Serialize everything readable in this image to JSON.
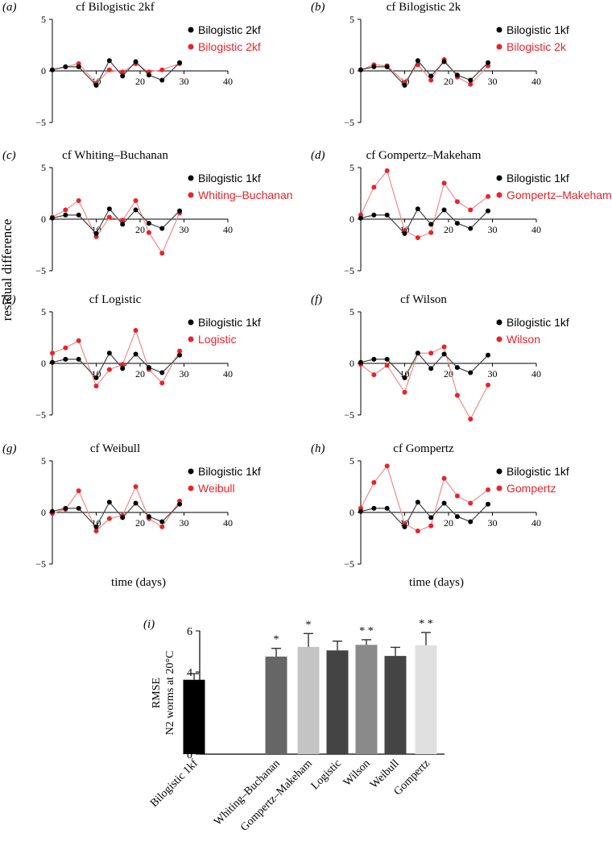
{
  "figure": {
    "y_axis_label": "residual difference",
    "x_axis_label": "time (days)"
  },
  "chart_data": [
    {
      "panel": "(a)",
      "title": "cf Bilogistic 2kf",
      "type": "line",
      "xlim": [
        0,
        40
      ],
      "ylim": [
        -5,
        5
      ],
      "xticks": [
        "10",
        "20",
        "30",
        "40"
      ],
      "yticks": [
        "5",
        "0",
        "−5"
      ],
      "series": [
        {
          "name": "Bilogistic 2kf",
          "color": "#000000",
          "x": [
            0,
            3,
            6,
            10,
            13,
            16,
            19,
            22,
            25,
            29
          ],
          "y": [
            0.1,
            0.4,
            0.4,
            -1.4,
            1.0,
            -0.5,
            0.9,
            -0.4,
            -0.9,
            0.8
          ]
        },
        {
          "name": "Bilogistic 2kf",
          "color": "#e8232a",
          "x": [
            0,
            3,
            6,
            10,
            13,
            16,
            19,
            22,
            25,
            29
          ],
          "y": [
            0.1,
            0.4,
            0.7,
            -1.2,
            0.1,
            -0.1,
            0.7,
            -0.1,
            0.1,
            0.7
          ]
        }
      ]
    },
    {
      "panel": "(b)",
      "title": "cf Bilogistic 2k",
      "type": "line",
      "xlim": [
        0,
        40
      ],
      "ylim": [
        -5,
        5
      ],
      "xticks": [
        "10",
        "20",
        "30",
        "40"
      ],
      "yticks": [
        "5",
        "0",
        "−5"
      ],
      "series": [
        {
          "name": "Bilogistic 1kf",
          "color": "#000000",
          "x": [
            0,
            3,
            6,
            10,
            13,
            16,
            19,
            22,
            25,
            29
          ],
          "y": [
            0.1,
            0.4,
            0.4,
            -1.4,
            1.0,
            -0.5,
            0.9,
            -0.4,
            -0.9,
            0.8
          ]
        },
        {
          "name": "Bilogistic 2k",
          "color": "#e8232a",
          "x": [
            0,
            3,
            6,
            10,
            13,
            16,
            19,
            22,
            25,
            29
          ],
          "y": [
            0.1,
            0.6,
            0.5,
            -1.1,
            0.6,
            -0.9,
            1.1,
            -0.6,
            -1.3,
            0.5
          ]
        }
      ]
    },
    {
      "panel": "(c)",
      "title": "cf Whiting–Buchanan",
      "type": "line",
      "xlim": [
        0,
        40
      ],
      "ylim": [
        -5,
        5
      ],
      "xticks": [
        "10",
        "20",
        "30",
        "40"
      ],
      "yticks": [
        "5",
        "0",
        "−5"
      ],
      "series": [
        {
          "name": "Bilogistic 1kf",
          "color": "#000000",
          "x": [
            0,
            3,
            6,
            10,
            13,
            16,
            19,
            22,
            25,
            29
          ],
          "y": [
            0.1,
            0.4,
            0.4,
            -1.4,
            1.0,
            -0.5,
            0.9,
            -0.4,
            -0.9,
            0.8
          ]
        },
        {
          "name": "Whiting–Buchanan",
          "color": "#e8232a",
          "x": [
            0,
            3,
            6,
            10,
            13,
            16,
            19,
            22,
            25,
            29
          ],
          "y": [
            0.2,
            0.9,
            1.8,
            -1.7,
            0.2,
            -0.1,
            1.8,
            -1.3,
            -3.3,
            0.6
          ]
        }
      ]
    },
    {
      "panel": "(d)",
      "title": "cf Gompertz–Makeham",
      "type": "line",
      "xlim": [
        0,
        40
      ],
      "ylim": [
        -5,
        5
      ],
      "xticks": [
        "10",
        "20",
        "30",
        "40"
      ],
      "yticks": [
        "5",
        "0",
        "−5"
      ],
      "series": [
        {
          "name": "Bilogistic 1kf",
          "color": "#000000",
          "x": [
            0,
            3,
            6,
            10,
            13,
            16,
            19,
            22,
            25,
            29
          ],
          "y": [
            0.1,
            0.4,
            0.4,
            -1.4,
            1.0,
            -0.5,
            0.9,
            -0.4,
            -0.9,
            0.8
          ]
        },
        {
          "name": "Gompertz–Makeham",
          "color": "#e8232a",
          "x": [
            0,
            3,
            6,
            10,
            13,
            16,
            19,
            22,
            25,
            29
          ],
          "y": [
            0.4,
            3.1,
            4.7,
            -1.1,
            -1.8,
            -1.3,
            3.5,
            1.7,
            0.9,
            2.2
          ]
        }
      ]
    },
    {
      "panel": "(e)",
      "title": "cf Logistic",
      "type": "line",
      "xlim": [
        0,
        40
      ],
      "ylim": [
        -5,
        5
      ],
      "xticks": [
        "10",
        "20",
        "30",
        "40"
      ],
      "yticks": [
        "5",
        "0",
        "−5"
      ],
      "series": [
        {
          "name": "Bilogistic 1kf",
          "color": "#000000",
          "x": [
            0,
            3,
            6,
            10,
            13,
            16,
            19,
            22,
            25,
            29
          ],
          "y": [
            0.1,
            0.4,
            0.4,
            -1.4,
            1.0,
            -0.5,
            0.9,
            -0.4,
            -0.9,
            0.8
          ]
        },
        {
          "name": "Logistic",
          "color": "#e8232a",
          "x": [
            0,
            3,
            6,
            10,
            13,
            16,
            19,
            22,
            25,
            29
          ],
          "y": [
            1.0,
            1.5,
            2.2,
            -2.2,
            -0.6,
            -0.1,
            3.2,
            -0.6,
            -1.9,
            1.2
          ]
        }
      ]
    },
    {
      "panel": "(f)",
      "title": "cf Wilson",
      "type": "line",
      "xlim": [
        0,
        40
      ],
      "ylim": [
        -5,
        5
      ],
      "xticks": [
        "10",
        "20",
        "30",
        "40"
      ],
      "yticks": [
        "5",
        "0",
        "−5"
      ],
      "series": [
        {
          "name": "Bilogistic 1kf",
          "color": "#000000",
          "x": [
            0,
            3,
            6,
            10,
            13,
            16,
            19,
            22,
            25,
            29
          ],
          "y": [
            0.1,
            0.4,
            0.4,
            -1.4,
            1.0,
            -0.5,
            0.9,
            -0.4,
            -0.9,
            0.8
          ]
        },
        {
          "name": "Wilson",
          "color": "#e8232a",
          "x": [
            0,
            3,
            6,
            10,
            13,
            16,
            19,
            22,
            25,
            29
          ],
          "y": [
            -0.1,
            -1.1,
            -0.2,
            -2.8,
            1.0,
            1.0,
            1.6,
            -3.1,
            -5.4,
            -2.1
          ]
        }
      ]
    },
    {
      "panel": "(g)",
      "title": "cf Weibull",
      "type": "line",
      "xlim": [
        0,
        40
      ],
      "ylim": [
        -5,
        5
      ],
      "xticks": [
        "10",
        "20",
        "30",
        "40"
      ],
      "yticks": [
        "5",
        "0",
        "−5"
      ],
      "series": [
        {
          "name": "Bilogistic 1kf",
          "color": "#000000",
          "x": [
            0,
            3,
            6,
            10,
            13,
            16,
            19,
            22,
            25,
            29
          ],
          "y": [
            0.1,
            0.4,
            0.4,
            -1.4,
            1.0,
            -0.5,
            0.9,
            -0.4,
            -0.9,
            0.8
          ]
        },
        {
          "name": "Weibull",
          "color": "#e8232a",
          "x": [
            0,
            3,
            6,
            10,
            13,
            16,
            19,
            22,
            25,
            29
          ],
          "y": [
            -0.1,
            0.3,
            2.1,
            -1.8,
            -0.6,
            -0.3,
            2.5,
            -0.6,
            -1.4,
            1.1
          ]
        }
      ]
    },
    {
      "panel": "(h)",
      "title": "cf Gompertz",
      "type": "line",
      "xlim": [
        0,
        40
      ],
      "ylim": [
        -5,
        5
      ],
      "xticks": [
        "10",
        "20",
        "30",
        "40"
      ],
      "yticks": [
        "5",
        "0",
        "−5"
      ],
      "series": [
        {
          "name": "Bilogistic 1kf",
          "color": "#000000",
          "x": [
            0,
            3,
            6,
            10,
            13,
            16,
            19,
            22,
            25,
            29
          ],
          "y": [
            0.1,
            0.4,
            0.4,
            -1.4,
            1.0,
            -0.5,
            0.9,
            -0.4,
            -0.9,
            0.8
          ]
        },
        {
          "name": "Gompertz",
          "color": "#e8232a",
          "x": [
            0,
            3,
            6,
            10,
            13,
            16,
            19,
            22,
            25,
            29
          ],
          "y": [
            0.4,
            2.9,
            4.5,
            -1.1,
            -1.8,
            -1.3,
            3.3,
            1.6,
            0.9,
            2.2
          ]
        }
      ]
    },
    {
      "panel": "(i)",
      "type": "bar",
      "ylabel": "RMSE\nN2 worms at 20°C",
      "ylim": [
        0,
        6
      ],
      "yticks": [
        "0",
        "2",
        "4",
        "6"
      ],
      "categories": [
        "Bilogistic 1kf",
        "Whiting–Buchanan",
        "Gompertz–Makeham",
        "Logistic",
        "Wilson",
        "Weibull",
        "Gompertz"
      ],
      "values": [
        3.62,
        4.75,
        5.22,
        5.05,
        5.32,
        4.78,
        5.3
      ],
      "errors": [
        0.3,
        0.4,
        0.65,
        0.45,
        0.25,
        0.42,
        0.62
      ],
      "significance": [
        "",
        "*",
        "*",
        "",
        "* *",
        "",
        "* *"
      ],
      "colors": [
        "#000000",
        "#666666",
        "#c4c4c4",
        "#444444",
        "#8a8a8a",
        "#444444",
        "#e0e0e0"
      ]
    }
  ]
}
